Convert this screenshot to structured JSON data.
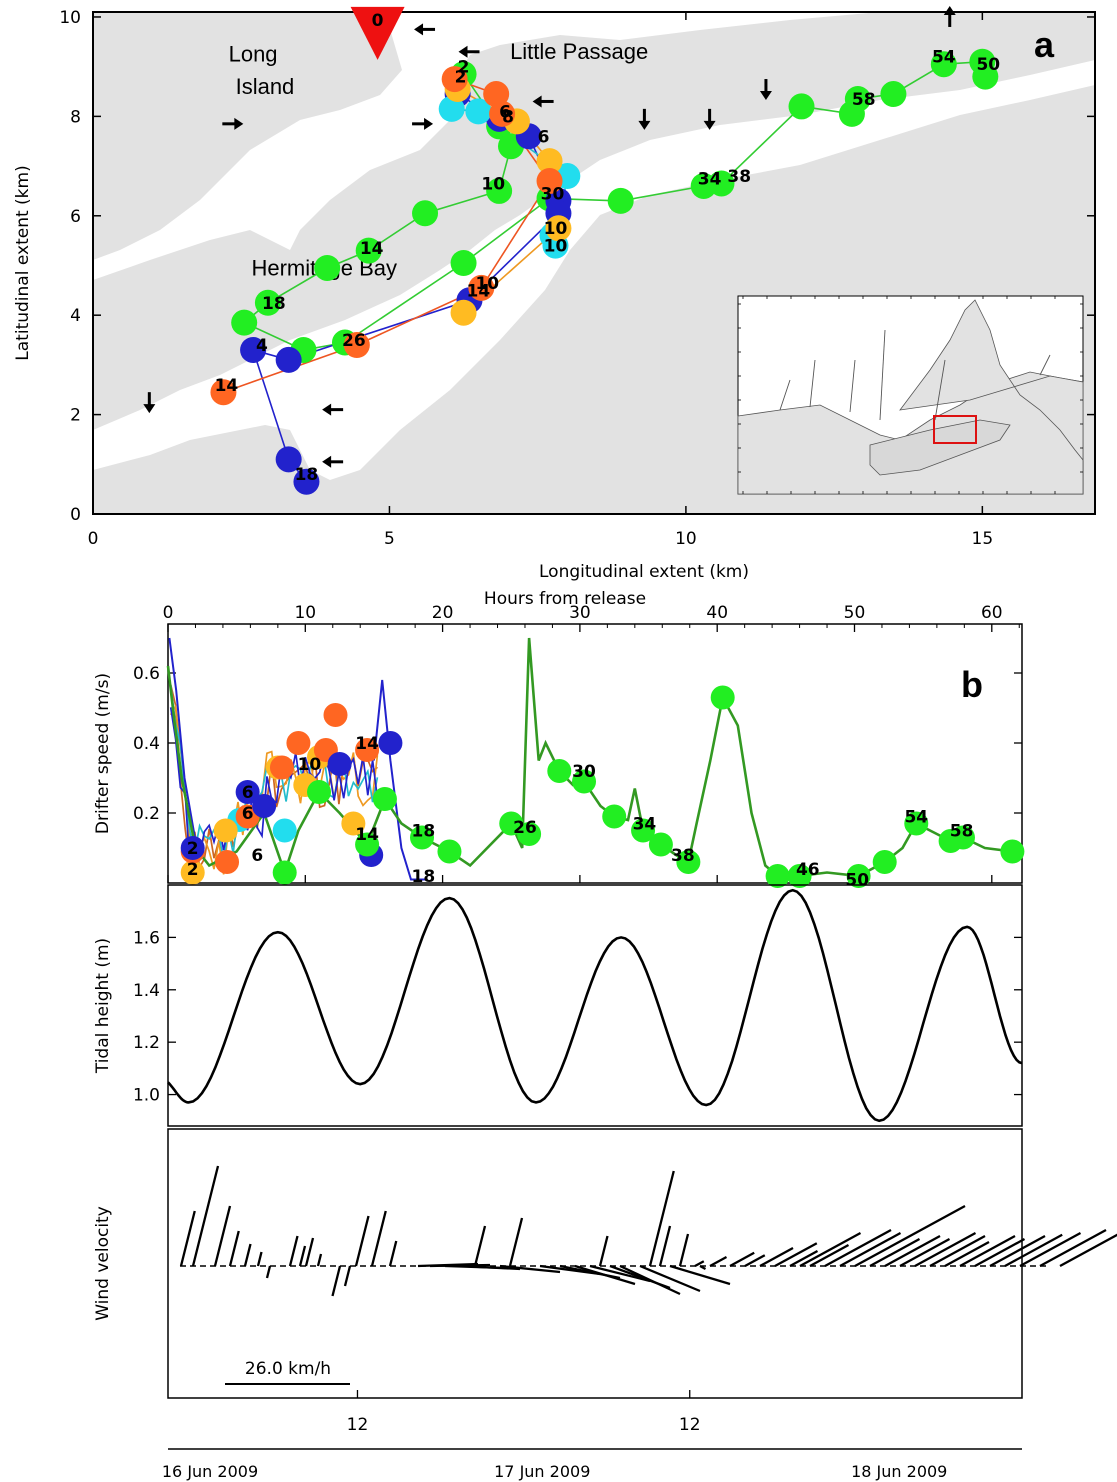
{
  "chart_data": [
    {
      "type": "scatter",
      "panel_label": "a",
      "xlabel": "Longitudinal extent (km)",
      "ylabel": "Latitudinal extent (km)",
      "xlim": [
        0,
        16.9
      ],
      "ylim": [
        0,
        10.1
      ],
      "xticks": [
        0,
        5,
        10,
        15
      ],
      "yticks": [
        0,
        2,
        4,
        6,
        8,
        10
      ],
      "place_labels": [
        {
          "text": "Long",
          "x": 2.7,
          "y": 9.1
        },
        {
          "text": "Island",
          "x": 2.9,
          "y": 8.45
        },
        {
          "text": "Little Passage",
          "x": 8.2,
          "y": 9.15
        },
        {
          "text": "Hermitage Bay",
          "x": 3.9,
          "y": 4.8
        }
      ],
      "release_point": {
        "label": "0",
        "x": 4.8,
        "y": 9.7
      },
      "arrows": [
        {
          "x": 5.6,
          "y": 9.75,
          "dir": "left"
        },
        {
          "x": 6.35,
          "y": 9.3,
          "dir": "left"
        },
        {
          "x": 2.35,
          "y": 7.85,
          "dir": "right"
        },
        {
          "x": 5.55,
          "y": 7.85,
          "dir": "right"
        },
        {
          "x": 7.6,
          "y": 8.3,
          "dir": "left"
        },
        {
          "x": 9.3,
          "y": 7.95,
          "dir": "down"
        },
        {
          "x": 10.4,
          "y": 7.95,
          "dir": "down"
        },
        {
          "x": 11.35,
          "y": 8.55,
          "dir": "down"
        },
        {
          "x": 14.45,
          "y": 10.0,
          "dir": "up"
        },
        {
          "x": 0.95,
          "y": 2.25,
          "dir": "down"
        },
        {
          "x": 4.05,
          "y": 2.1,
          "dir": "left"
        },
        {
          "x": 4.05,
          "y": 1.05,
          "dir": "left"
        }
      ],
      "series": [
        {
          "color": "#22ee22",
          "line": "#33cc33",
          "points": [
            [
              6.25,
              8.85
            ],
            [
              6.85,
              7.8
            ],
            [
              7.05,
              7.4
            ],
            [
              6.85,
              6.5
            ],
            [
              5.6,
              6.05
            ],
            [
              4.65,
              5.3
            ],
            [
              3.95,
              4.95
            ],
            [
              2.95,
              4.25
            ],
            [
              2.55,
              3.85
            ],
            [
              3.55,
              3.3
            ],
            [
              4.25,
              3.45
            ],
            [
              6.25,
              5.05
            ],
            [
              7.7,
              6.35
            ],
            [
              8.9,
              6.3
            ],
            [
              10.3,
              6.6
            ],
            [
              10.6,
              6.65
            ],
            [
              11.95,
              8.2
            ],
            [
              12.8,
              8.05
            ],
            [
              12.9,
              8.35
            ],
            [
              13.5,
              8.45
            ],
            [
              14.35,
              9.05
            ],
            [
              15.0,
              9.1
            ],
            [
              15.05,
              8.8
            ]
          ],
          "labels": [
            {
              "t": "2",
              "x": 6.25,
              "y": 9.0
            },
            {
              "t": "6",
              "x": 7.6,
              "y": 7.6
            },
            {
              "t": "10",
              "x": 6.75,
              "y": 6.65
            },
            {
              "t": "14",
              "x": 4.7,
              "y": 5.35
            },
            {
              "t": "18",
              "x": 3.05,
              "y": 4.25
            },
            {
              "t": "26",
              "x": 4.4,
              "y": 3.5
            },
            {
              "t": "30",
              "x": 7.75,
              "y": 6.45
            },
            {
              "t": "34",
              "x": 10.4,
              "y": 6.75
            },
            {
              "t": "38",
              "x": 10.9,
              "y": 6.8
            },
            {
              "t": "58",
              "x": 13.0,
              "y": 8.35
            },
            {
              "t": "54",
              "x": 14.35,
              "y": 9.2
            },
            {
              "t": "50",
              "x": 15.1,
              "y": 9.05
            }
          ]
        },
        {
          "color": "#2222cc",
          "line": "#2222cc",
          "points": [
            [
              6.15,
              8.45
            ],
            [
              6.85,
              7.95
            ],
            [
              7.35,
              7.6
            ],
            [
              7.85,
              6.3
            ],
            [
              7.85,
              6.05
            ],
            [
              6.35,
              4.3
            ],
            [
              3.3,
              3.1
            ],
            [
              2.7,
              3.3
            ],
            [
              3.3,
              1.1
            ],
            [
              3.6,
              0.65
            ]
          ],
          "labels": [
            {
              "t": "8",
              "x": 7.0,
              "y": 8.0
            },
            {
              "t": "14",
              "x": 6.5,
              "y": 4.5
            },
            {
              "t": "4",
              "x": 2.85,
              "y": 3.4
            },
            {
              "t": "18",
              "x": 3.6,
              "y": 0.8
            }
          ]
        },
        {
          "color": "#22ddee",
          "line": "#22bbcc",
          "points": [
            [
              6.05,
              8.15
            ],
            [
              6.5,
              8.1
            ],
            [
              8.0,
              6.8
            ],
            [
              7.8,
              5.4
            ],
            [
              7.75,
              5.6
            ]
          ],
          "labels": [
            {
              "t": "10",
              "x": 7.8,
              "y": 5.4
            }
          ]
        },
        {
          "color": "#ffbb22",
          "line": "#ee9922",
          "points": [
            [
              6.15,
              8.55
            ],
            [
              7.15,
              7.9
            ],
            [
              7.7,
              7.1
            ],
            [
              7.85,
              5.75
            ],
            [
              6.25,
              4.05
            ]
          ],
          "labels": [
            {
              "t": "10",
              "x": 7.8,
              "y": 5.75
            }
          ]
        },
        {
          "color": "#ff6622",
          "line": "#ee5522",
          "points": [
            [
              6.1,
              8.75
            ],
            [
              6.8,
              8.45
            ],
            [
              6.9,
              8.05
            ],
            [
              7.7,
              6.7
            ],
            [
              6.55,
              4.55
            ],
            [
              4.45,
              3.4
            ],
            [
              2.2,
              2.45
            ]
          ],
          "labels": [
            {
              "t": "2",
              "x": 6.2,
              "y": 8.8
            },
            {
              "t": "6",
              "x": 6.95,
              "y": 8.1
            },
            {
              "t": "10",
              "x": 6.65,
              "y": 4.65
            },
            {
              "t": "14",
              "x": 2.25,
              "y": 2.6
            }
          ]
        }
      ],
      "inset": {
        "description_free": true
      }
    },
    {
      "type": "line",
      "panel_label": "b",
      "title_top": "Hours from release",
      "ylabel": "Drifter speed (m/s)",
      "xlim": [
        0,
        62.2
      ],
      "ylim": [
        0,
        0.74
      ],
      "xticks": [
        0,
        10,
        20,
        30,
        40,
        50,
        60
      ],
      "yticks": [
        0.2,
        0.4,
        0.6
      ],
      "green_points": [
        [
          8.5,
          0.03
        ],
        [
          15.8,
          0.24
        ],
        [
          18.5,
          0.13
        ],
        [
          20.5,
          0.09
        ],
        [
          25.0,
          0.17
        ],
        [
          26.3,
          0.14
        ],
        [
          28.5,
          0.32
        ],
        [
          30.3,
          0.29
        ],
        [
          32.5,
          0.19
        ],
        [
          34.6,
          0.15
        ],
        [
          35.9,
          0.11
        ],
        [
          37.9,
          0.06
        ],
        [
          40.4,
          0.53
        ],
        [
          44.4,
          0.02
        ],
        [
          46.0,
          0.02
        ],
        [
          50.3,
          0.02
        ],
        [
          52.2,
          0.06
        ],
        [
          54.5,
          0.17
        ],
        [
          57.0,
          0.12
        ],
        [
          57.9,
          0.13
        ],
        [
          61.5,
          0.09
        ],
        [
          14.5,
          0.11
        ],
        [
          11.0,
          0.26
        ]
      ],
      "green_labels": [
        {
          "t": "14",
          "x": 14.5,
          "y": 0.14
        },
        {
          "t": "18",
          "x": 18.6,
          "y": 0.15
        },
        {
          "t": "26",
          "x": 26.0,
          "y": 0.16
        },
        {
          "t": "30",
          "x": 30.3,
          "y": 0.32
        },
        {
          "t": "34",
          "x": 34.7,
          "y": 0.17
        },
        {
          "t": "38",
          "x": 37.5,
          "y": 0.08
        },
        {
          "t": "46",
          "x": 46.6,
          "y": 0.04
        },
        {
          "t": "50",
          "x": 50.2,
          "y": 0.01
        },
        {
          "t": "54",
          "x": 54.5,
          "y": 0.19
        },
        {
          "t": "58",
          "x": 57.8,
          "y": 0.15
        }
      ],
      "blue_points": [
        [
          1.8,
          0.1
        ],
        [
          5.8,
          0.26
        ],
        [
          7.0,
          0.22
        ],
        [
          12.5,
          0.34
        ],
        [
          14.8,
          0.08
        ],
        [
          16.2,
          0.4
        ]
      ],
      "blue_labels": [
        {
          "t": "6",
          "x": 5.8,
          "y": 0.26
        },
        {
          "t": "18",
          "x": 18.6,
          "y": 0.02
        }
      ],
      "cyan_points": [
        [
          5.2,
          0.18
        ],
        [
          8.5,
          0.15
        ]
      ],
      "orange_points": [
        [
          1.8,
          0.03
        ],
        [
          4.2,
          0.15
        ],
        [
          8.0,
          0.33
        ],
        [
          10.0,
          0.28
        ],
        [
          11.0,
          0.36
        ],
        [
          13.5,
          0.17
        ]
      ],
      "red_points": [
        [
          1.8,
          0.09
        ],
        [
          4.3,
          0.06
        ],
        [
          5.8,
          0.19
        ],
        [
          8.3,
          0.33
        ],
        [
          9.5,
          0.4
        ],
        [
          11.5,
          0.38
        ],
        [
          12.2,
          0.48
        ],
        [
          14.5,
          0.38
        ]
      ],
      "red_labels": [
        {
          "t": "2",
          "x": 1.8,
          "y": 0.1
        },
        {
          "t": "6",
          "x": 5.8,
          "y": 0.2
        },
        {
          "t": "10",
          "x": 10.3,
          "y": 0.34
        },
        {
          "t": "14",
          "x": 14.5,
          "y": 0.4
        },
        {
          "t": "6",
          "x": 6.5,
          "y": 0.08
        },
        {
          "t": "2",
          "x": 1.8,
          "y": 0.04
        }
      ]
    },
    {
      "type": "line",
      "ylabel": "Tidal height (m)",
      "xlim": [
        0,
        62.2
      ],
      "ylim": [
        0.88,
        1.8
      ],
      "yticks": [
        1.0,
        1.2,
        1.4,
        1.6
      ],
      "extrema": [
        [
          -0.5,
          1.06
        ],
        [
          1.5,
          0.97
        ],
        [
          8.0,
          1.62
        ],
        [
          14.0,
          1.04
        ],
        [
          20.5,
          1.75
        ],
        [
          26.8,
          0.97
        ],
        [
          33.0,
          1.6
        ],
        [
          39.2,
          0.96
        ],
        [
          45.5,
          1.78
        ],
        [
          51.8,
          0.9
        ],
        [
          58.2,
          1.64
        ],
        [
          62.2,
          1.12
        ]
      ]
    },
    {
      "type": "line",
      "ylabel": "Wind velocity",
      "scale_label": "26.0 km/h",
      "xticks_labels": [
        {
          "t": "12",
          "x": 13.8
        },
        {
          "t": "12",
          "x": 38.0
        }
      ],
      "dates": [
        {
          "t": "16 Jun 2009",
          "x": 0.0
        },
        {
          "t": "17 Jun 2009",
          "x": 24.2
        },
        {
          "t": "18 Jun 2009",
          "x": 50.2
        }
      ]
    }
  ]
}
